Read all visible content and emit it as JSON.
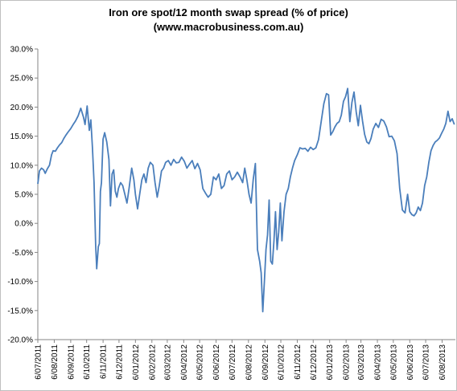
{
  "chart_data": {
    "type": "line",
    "title": "Iron ore spot/12 month swap spread (% of price)",
    "subtitle": "(www.macrobusiness.com.au)",
    "xlabel": "",
    "ylabel": "",
    "ylim": [
      -20,
      30
    ],
    "y_ticks": [
      "30.0%",
      "25.0%",
      "20.0%",
      "15.0%",
      "10.0%",
      "5.0%",
      "0.0%",
      "-5.0%",
      "-10.0%",
      "-15.0%",
      "-20.0%"
    ],
    "x_ticks": [
      "6/07/2011",
      "6/08/2011",
      "6/09/2011",
      "6/10/2011",
      "6/11/2011",
      "6/12/2011",
      "6/01/2012",
      "6/02/2012",
      "6/03/2012",
      "6/04/2012",
      "6/05/2012",
      "6/06/2012",
      "6/07/2012",
      "6/08/2012",
      "6/09/2012",
      "6/10/2012",
      "6/11/2012",
      "6/12/2012",
      "6/01/2013",
      "6/02/2013",
      "6/03/2013",
      "6/04/2013",
      "6/05/2013",
      "6/06/2013",
      "6/07/2013",
      "6/08/2013"
    ],
    "grid": false,
    "legend": "none",
    "line_color": "#4a7ebb",
    "series": [
      {
        "x": [
          "2011-07-06",
          "2011-07-09",
          "2011-07-13",
          "2011-07-17",
          "2011-07-20",
          "2011-07-24",
          "2011-07-28",
          "2011-08-01",
          "2011-08-04",
          "2011-08-08",
          "2011-08-12",
          "2011-08-16",
          "2011-08-20",
          "2011-08-24",
          "2011-08-28",
          "2011-09-01",
          "2011-09-06",
          "2011-09-10",
          "2011-09-15",
          "2011-09-20",
          "2011-09-25",
          "2011-09-30",
          "2011-10-03",
          "2011-10-07",
          "2011-10-11",
          "2011-10-14",
          "2011-10-17",
          "2011-10-20",
          "2011-10-23",
          "2011-10-25",
          "2011-10-28",
          "2011-10-30",
          "2011-11-01",
          "2011-11-03",
          "2011-11-06",
          "2011-11-09",
          "2011-11-13",
          "2011-11-17",
          "2011-11-20",
          "2011-11-23",
          "2011-11-26",
          "2011-11-29",
          "2011-12-02",
          "2011-12-05",
          "2011-12-09",
          "2011-12-13",
          "2011-12-17",
          "2011-12-21",
          "2011-12-25",
          "2011-12-30",
          "2012-01-03",
          "2012-01-06",
          "2012-01-10",
          "2012-01-14",
          "2012-01-18",
          "2012-01-22",
          "2012-01-26",
          "2012-01-30",
          "2012-02-03",
          "2012-02-08",
          "2012-02-12",
          "2012-02-16",
          "2012-02-20",
          "2012-02-24",
          "2012-02-28",
          "2012-03-03",
          "2012-03-08",
          "2012-03-13",
          "2012-03-18",
          "2012-03-23",
          "2012-03-28",
          "2012-04-02",
          "2012-04-07",
          "2012-04-12",
          "2012-04-17",
          "2012-04-22",
          "2012-04-27",
          "2012-05-02",
          "2012-05-07",
          "2012-05-12",
          "2012-05-17",
          "2012-05-22",
          "2012-05-27",
          "2012-06-01",
          "2012-06-06",
          "2012-06-11",
          "2012-06-16",
          "2012-06-21",
          "2012-06-26",
          "2012-07-01",
          "2012-07-06",
          "2012-07-11",
          "2012-07-16",
          "2012-07-21",
          "2012-07-26",
          "2012-07-30",
          "2012-08-03",
          "2012-08-07",
          "2012-08-11",
          "2012-08-15",
          "2012-08-19",
          "2012-08-23",
          "2012-08-27",
          "2012-08-30",
          "2012-09-02",
          "2012-09-05",
          "2012-09-08",
          "2012-09-11",
          "2012-09-14",
          "2012-09-17",
          "2012-09-20",
          "2012-09-23",
          "2012-09-26",
          "2012-09-29",
          "2012-10-02",
          "2012-10-05",
          "2012-10-08",
          "2012-10-12",
          "2012-10-16",
          "2012-10-20",
          "2012-10-24",
          "2012-10-28",
          "2012-11-01",
          "2012-11-06",
          "2012-11-11",
          "2012-11-16",
          "2012-11-21",
          "2012-11-26",
          "2012-12-01",
          "2012-12-06",
          "2012-12-11",
          "2012-12-16",
          "2012-12-21",
          "2012-12-26",
          "2012-12-31",
          "2013-01-04",
          "2013-01-08",
          "2013-01-12",
          "2013-01-16",
          "2013-01-20",
          "2013-01-24",
          "2013-01-28",
          "2013-02-01",
          "2013-02-05",
          "2013-02-09",
          "2013-02-13",
          "2013-02-17",
          "2013-02-21",
          "2013-02-25",
          "2013-03-01",
          "2013-03-05",
          "2013-03-09",
          "2013-03-13",
          "2013-03-17",
          "2013-03-21",
          "2013-03-25",
          "2013-03-29",
          "2013-04-03",
          "2013-04-08",
          "2013-04-13",
          "2013-04-18",
          "2013-04-23",
          "2013-04-28",
          "2013-05-03",
          "2013-05-08",
          "2013-05-13",
          "2013-05-18",
          "2013-05-23",
          "2013-05-28",
          "2013-06-02",
          "2013-06-06",
          "2013-06-10",
          "2013-06-14",
          "2013-06-18",
          "2013-06-22",
          "2013-06-26",
          "2013-06-30",
          "2013-07-04",
          "2013-07-08",
          "2013-07-12",
          "2013-07-16",
          "2013-07-20",
          "2013-07-24",
          "2013-07-28",
          "2013-08-01",
          "2013-08-05",
          "2013-08-09",
          "2013-08-13",
          "2013-08-17",
          "2013-08-21",
          "2013-08-25",
          "2013-08-29"
        ],
        "values": [
          6.8,
          9.0,
          9.5,
          9.2,
          8.6,
          9.4,
          10.0,
          11.8,
          12.5,
          12.4,
          13.0,
          13.5,
          13.9,
          14.6,
          15.2,
          15.7,
          16.3,
          16.9,
          17.6,
          18.5,
          19.8,
          18.3,
          17.0,
          20.2,
          16.0,
          17.8,
          13.0,
          7.0,
          -3.8,
          -7.8,
          -4.0,
          -3.5,
          5.5,
          7.0,
          14.5,
          15.6,
          14.0,
          11.0,
          3.0,
          8.5,
          9.2,
          5.5,
          4.5,
          6.0,
          7.0,
          6.5,
          5.0,
          3.5,
          6.0,
          9.5,
          7.5,
          5.0,
          2.5,
          5.0,
          7.5,
          8.5,
          7.0,
          9.5,
          10.5,
          10.0,
          7.0,
          4.5,
          6.5,
          9.0,
          9.5,
          10.5,
          10.8,
          10.0,
          11.0,
          10.4,
          10.5,
          11.4,
          10.7,
          9.5,
          10.2,
          10.8,
          9.4,
          10.3,
          9.2,
          6.0,
          5.2,
          4.5,
          5.0,
          8.0,
          7.5,
          8.5,
          6.0,
          6.5,
          8.5,
          9.0,
          7.5,
          8.0,
          8.8,
          8.0,
          7.0,
          9.5,
          7.5,
          5.0,
          3.5,
          7.5,
          10.3,
          -4.5,
          -6.5,
          -8.5,
          -15.2,
          -10.0,
          -4.5,
          -2.0,
          4.0,
          -6.5,
          -7.0,
          -3.0,
          2.0,
          -4.5,
          -1.5,
          3.5,
          -3.0,
          2.0,
          5.0,
          6.0,
          8.0,
          9.5,
          10.8,
          11.8,
          13.0,
          12.8,
          12.9,
          12.4,
          13.1,
          12.7,
          13.0,
          14.4,
          17.5,
          20.6,
          22.3,
          22.1,
          15.2,
          15.8,
          16.6,
          17.2,
          17.5,
          18.6,
          21.0,
          21.8,
          23.2,
          17.5,
          20.8,
          22.6,
          19.2,
          16.8,
          20.3,
          17.6,
          15.3,
          14.0,
          13.7,
          14.6,
          16.2,
          17.2,
          16.5,
          17.9,
          17.6,
          16.6,
          14.9,
          15.0,
          14.2,
          12.0,
          6.0,
          2.3,
          1.8,
          5.0,
          2.0,
          1.5,
          1.3,
          1.8,
          2.8,
          2.2,
          3.5,
          6.5,
          8.0,
          10.5,
          12.5,
          13.4,
          14.0,
          14.3,
          14.7,
          15.5,
          16.2,
          17.2,
          19.3,
          17.5,
          18.0,
          17.0
        ]
      }
    ]
  }
}
